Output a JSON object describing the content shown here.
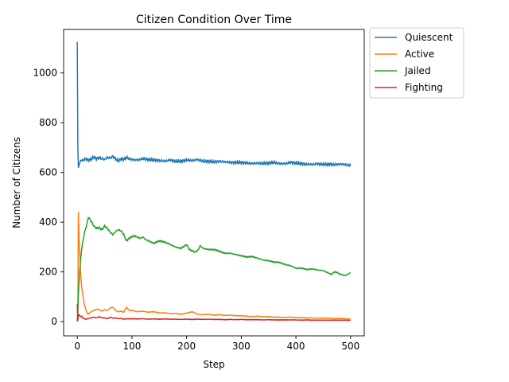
{
  "chart_data": {
    "type": "line",
    "title": "Citizen Condition Over Time",
    "xlabel": "Step",
    "ylabel": "Number of Citizens",
    "xlim": [
      -25,
      525
    ],
    "ylim": [
      -57,
      1175
    ],
    "xticks": [
      0,
      100,
      200,
      300,
      400,
      500
    ],
    "yticks": [
      0,
      200,
      400,
      600,
      800,
      1000
    ],
    "grid": false,
    "legend_position": "outside-top-right",
    "series": [
      {
        "name": "Quiescent",
        "color": "#1f77b4",
        "points": [
          [
            0,
            1125
          ],
          [
            1,
            700
          ],
          [
            2,
            620
          ],
          [
            4,
            635
          ],
          [
            6,
            650
          ],
          [
            10,
            648
          ],
          [
            15,
            655
          ],
          [
            20,
            650
          ],
          [
            25,
            652
          ],
          [
            30,
            662
          ],
          [
            35,
            655
          ],
          [
            40,
            660
          ],
          [
            45,
            655
          ],
          [
            50,
            652
          ],
          [
            55,
            660
          ],
          [
            60,
            658
          ],
          [
            65,
            665
          ],
          [
            70,
            655
          ],
          [
            75,
            645
          ],
          [
            80,
            655
          ],
          [
            85,
            652
          ],
          [
            90,
            660
          ],
          [
            95,
            655
          ],
          [
            100,
            652
          ],
          [
            110,
            650
          ],
          [
            120,
            655
          ],
          [
            130,
            652
          ],
          [
            140,
            650
          ],
          [
            150,
            648
          ],
          [
            160,
            645
          ],
          [
            170,
            650
          ],
          [
            180,
            645
          ],
          [
            190,
            645
          ],
          [
            200,
            650
          ],
          [
            210,
            648
          ],
          [
            220,
            652
          ],
          [
            230,
            645
          ],
          [
            240,
            645
          ],
          [
            250,
            642
          ],
          [
            260,
            645
          ],
          [
            270,
            642
          ],
          [
            280,
            640
          ],
          [
            290,
            640
          ],
          [
            300,
            640
          ],
          [
            310,
            638
          ],
          [
            320,
            636
          ],
          [
            330,
            638
          ],
          [
            340,
            636
          ],
          [
            350,
            638
          ],
          [
            360,
            640
          ],
          [
            370,
            636
          ],
          [
            380,
            635
          ],
          [
            390,
            640
          ],
          [
            400,
            638
          ],
          [
            410,
            635
          ],
          [
            420,
            633
          ],
          [
            430,
            632
          ],
          [
            440,
            635
          ],
          [
            450,
            632
          ],
          [
            460,
            633
          ],
          [
            470,
            631
          ],
          [
            480,
            634
          ],
          [
            490,
            632
          ],
          [
            500,
            627
          ]
        ]
      },
      {
        "name": "Active",
        "color": "#ff7f0e",
        "points": [
          [
            0,
            5
          ],
          [
            1,
            30
          ],
          [
            2,
            440
          ],
          [
            3,
            350
          ],
          [
            4,
            290
          ],
          [
            5,
            250
          ],
          [
            6,
            200
          ],
          [
            8,
            140
          ],
          [
            10,
            110
          ],
          [
            12,
            80
          ],
          [
            14,
            60
          ],
          [
            16,
            45
          ],
          [
            18,
            35
          ],
          [
            20,
            30
          ],
          [
            25,
            40
          ],
          [
            30,
            45
          ],
          [
            35,
            50
          ],
          [
            40,
            48
          ],
          [
            45,
            42
          ],
          [
            50,
            48
          ],
          [
            55,
            45
          ],
          [
            60,
            55
          ],
          [
            65,
            58
          ],
          [
            70,
            45
          ],
          [
            75,
            40
          ],
          [
            80,
            42
          ],
          [
            85,
            38
          ],
          [
            90,
            58
          ],
          [
            95,
            45
          ],
          [
            100,
            45
          ],
          [
            110,
            40
          ],
          [
            120,
            42
          ],
          [
            130,
            38
          ],
          [
            140,
            40
          ],
          [
            150,
            35
          ],
          [
            160,
            36
          ],
          [
            170,
            32
          ],
          [
            180,
            33
          ],
          [
            190,
            30
          ],
          [
            200,
            34
          ],
          [
            210,
            40
          ],
          [
            220,
            30
          ],
          [
            230,
            28
          ],
          [
            240,
            30
          ],
          [
            250,
            26
          ],
          [
            260,
            28
          ],
          [
            270,
            25
          ],
          [
            280,
            26
          ],
          [
            290,
            24
          ],
          [
            300,
            24
          ],
          [
            310,
            22
          ],
          [
            320,
            20
          ],
          [
            330,
            22
          ],
          [
            340,
            20
          ],
          [
            350,
            20
          ],
          [
            360,
            18
          ],
          [
            370,
            18
          ],
          [
            380,
            17
          ],
          [
            390,
            18
          ],
          [
            400,
            16
          ],
          [
            410,
            16
          ],
          [
            420,
            15
          ],
          [
            430,
            15
          ],
          [
            440,
            14
          ],
          [
            450,
            14
          ],
          [
            460,
            14
          ],
          [
            470,
            12
          ],
          [
            480,
            13
          ],
          [
            490,
            12
          ],
          [
            500,
            10
          ]
        ]
      },
      {
        "name": "Jailed",
        "color": "#2ca02c",
        "points": [
          [
            0,
            0
          ],
          [
            1,
            40
          ],
          [
            2,
            110
          ],
          [
            4,
            190
          ],
          [
            6,
            250
          ],
          [
            8,
            290
          ],
          [
            10,
            320
          ],
          [
            12,
            345
          ],
          [
            14,
            365
          ],
          [
            16,
            380
          ],
          [
            18,
            395
          ],
          [
            20,
            420
          ],
          [
            22,
            415
          ],
          [
            25,
            405
          ],
          [
            28,
            395
          ],
          [
            30,
            385
          ],
          [
            35,
            375
          ],
          [
            40,
            378
          ],
          [
            45,
            370
          ],
          [
            50,
            385
          ],
          [
            55,
            375
          ],
          [
            60,
            360
          ],
          [
            65,
            350
          ],
          [
            70,
            362
          ],
          [
            75,
            370
          ],
          [
            80,
            365
          ],
          [
            85,
            350
          ],
          [
            90,
            325
          ],
          [
            95,
            335
          ],
          [
            100,
            342
          ],
          [
            105,
            345
          ],
          [
            110,
            340
          ],
          [
            115,
            335
          ],
          [
            120,
            340
          ],
          [
            125,
            330
          ],
          [
            130,
            325
          ],
          [
            135,
            320
          ],
          [
            140,
            315
          ],
          [
            150,
            325
          ],
          [
            160,
            320
          ],
          [
            170,
            310
          ],
          [
            180,
            300
          ],
          [
            190,
            295
          ],
          [
            200,
            310
          ],
          [
            205,
            290
          ],
          [
            210,
            285
          ],
          [
            215,
            280
          ],
          [
            220,
            285
          ],
          [
            225,
            305
          ],
          [
            230,
            295
          ],
          [
            240,
            290
          ],
          [
            250,
            290
          ],
          [
            260,
            283
          ],
          [
            270,
            275
          ],
          [
            280,
            275
          ],
          [
            290,
            270
          ],
          [
            300,
            265
          ],
          [
            310,
            260
          ],
          [
            320,
            262
          ],
          [
            330,
            255
          ],
          [
            340,
            248
          ],
          [
            350,
            245
          ],
          [
            360,
            240
          ],
          [
            370,
            238
          ],
          [
            380,
            230
          ],
          [
            390,
            225
          ],
          [
            400,
            215
          ],
          [
            410,
            215
          ],
          [
            420,
            210
          ],
          [
            430,
            212
          ],
          [
            440,
            208
          ],
          [
            450,
            205
          ],
          [
            460,
            195
          ],
          [
            465,
            190
          ],
          [
            470,
            200
          ],
          [
            475,
            198
          ],
          [
            480,
            192
          ],
          [
            485,
            188
          ],
          [
            490,
            185
          ],
          [
            495,
            190
          ],
          [
            500,
            197
          ]
        ]
      },
      {
        "name": "Fighting",
        "color": "#d62728",
        "points": [
          [
            0,
            70
          ],
          [
            1,
            5
          ],
          [
            2,
            30
          ],
          [
            4,
            25
          ],
          [
            6,
            20
          ],
          [
            8,
            22
          ],
          [
            10,
            15
          ],
          [
            15,
            10
          ],
          [
            20,
            12
          ],
          [
            25,
            15
          ],
          [
            30,
            18
          ],
          [
            35,
            15
          ],
          [
            40,
            20
          ],
          [
            45,
            16
          ],
          [
            50,
            15
          ],
          [
            55,
            12
          ],
          [
            60,
            18
          ],
          [
            65,
            14
          ],
          [
            70,
            15
          ],
          [
            75,
            12
          ],
          [
            80,
            13
          ],
          [
            85,
            10
          ],
          [
            90,
            12
          ],
          [
            95,
            11
          ],
          [
            100,
            12
          ],
          [
            110,
            11
          ],
          [
            120,
            12
          ],
          [
            130,
            10
          ],
          [
            140,
            11
          ],
          [
            150,
            10
          ],
          [
            160,
            11
          ],
          [
            170,
            10
          ],
          [
            180,
            10
          ],
          [
            190,
            9
          ],
          [
            200,
            10
          ],
          [
            210,
            9
          ],
          [
            220,
            10
          ],
          [
            230,
            9
          ],
          [
            240,
            10
          ],
          [
            250,
            9
          ],
          [
            260,
            9
          ],
          [
            270,
            8
          ],
          [
            280,
            9
          ],
          [
            290,
            8
          ],
          [
            300,
            9
          ],
          [
            310,
            8
          ],
          [
            320,
            8
          ],
          [
            330,
            8
          ],
          [
            340,
            7
          ],
          [
            350,
            8
          ],
          [
            360,
            7
          ],
          [
            370,
            7
          ],
          [
            380,
            7
          ],
          [
            390,
            7
          ],
          [
            400,
            7
          ],
          [
            410,
            6
          ],
          [
            420,
            7
          ],
          [
            430,
            6
          ],
          [
            440,
            6
          ],
          [
            450,
            6
          ],
          [
            460,
            6
          ],
          [
            470,
            6
          ],
          [
            480,
            6
          ],
          [
            490,
            6
          ],
          [
            500,
            5
          ]
        ]
      }
    ]
  }
}
